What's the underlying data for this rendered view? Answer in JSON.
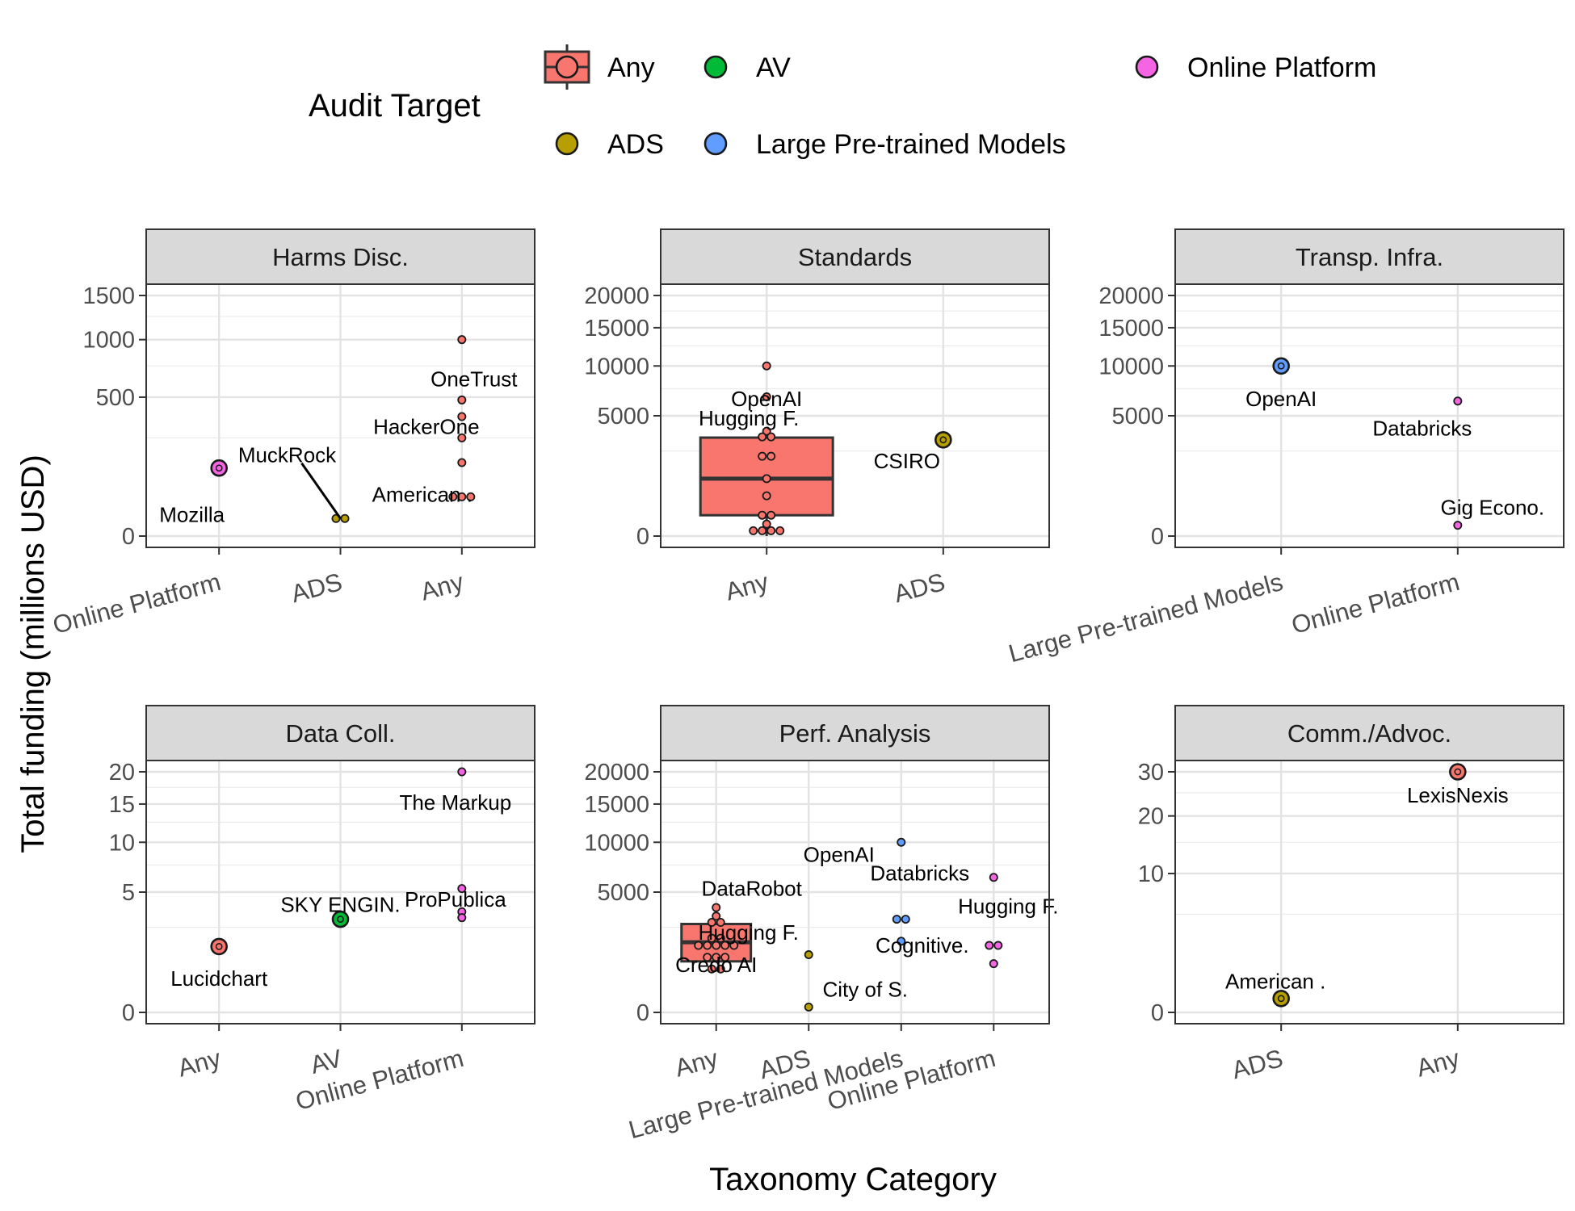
{
  "chart_data": {
    "type": "boxplot-with-jittered-points, faceted",
    "xlabel": "Taxonomy Category",
    "ylabel": "Total funding (millions USD)",
    "legend": {
      "title": "Audit Target",
      "placement": "top",
      "entries": [
        {
          "label": "Any",
          "color": "#F8766D"
        },
        {
          "label": "AV",
          "color": "#00BA38"
        },
        {
          "label": "Online Platform",
          "color": "#F564E3"
        },
        {
          "label": "ADS",
          "color": "#B79F00"
        },
        {
          "label": "Large Pre-trained Models",
          "color": "#619CFF"
        }
      ]
    },
    "colors": {
      "Any": "#F8766D",
      "AV": "#00BA38",
      "Online Platform": "#F564E3",
      "ADS": "#B79F00",
      "Large Pre-trained Models": "#619CFF"
    },
    "y_scale": "sqrt",
    "grid": true,
    "facets": [
      {
        "title": "Harms Disc.",
        "categories": [
          "Online Platform",
          "ADS",
          "Any"
        ],
        "ylim": [
          0,
          1500
        ],
        "yticks": [
          0,
          500,
          1000,
          1500
        ],
        "points": [
          {
            "cat": "Online Platform",
            "y": 120,
            "target": "Online Platform",
            "single": true
          },
          {
            "cat": "ADS",
            "y": 8,
            "target": "ADS"
          },
          {
            "cat": "ADS",
            "y": 8,
            "target": "ADS"
          },
          {
            "cat": "Any",
            "y": 1000,
            "target": "Any"
          },
          {
            "cat": "Any",
            "y": 480,
            "target": "Any"
          },
          {
            "cat": "Any",
            "y": 370,
            "target": "Any"
          },
          {
            "cat": "Any",
            "y": 250,
            "target": "Any"
          },
          {
            "cat": "Any",
            "y": 140,
            "target": "Any"
          },
          {
            "cat": "Any",
            "y": 40,
            "target": "Any"
          },
          {
            "cat": "Any",
            "y": 40,
            "target": "Any"
          },
          {
            "cat": "Any",
            "y": 40,
            "target": "Any"
          }
        ],
        "labels": [
          {
            "text": "Mozilla",
            "cat": "Online Platform",
            "y": 12
          },
          {
            "text": "MuckRock",
            "cat": "ADS",
            "y": 170
          },
          {
            "text": "OneTrust",
            "cat": "Any",
            "y": 640
          },
          {
            "text": "HackerOne",
            "cat": "Any",
            "y": 310
          },
          {
            "text": "American .",
            "cat": "Any",
            "y": 45
          }
        ]
      },
      {
        "title": "Standards",
        "categories": [
          "Any",
          "ADS"
        ],
        "ylim": [
          0,
          20000
        ],
        "yticks": [
          0,
          5000,
          10000,
          15000,
          20000
        ],
        "box": {
          "cat": "Any",
          "q1": 150,
          "median": 1140,
          "q3": 3350,
          "whisker_low": 0,
          "whisker_high": 3350
        },
        "points": [
          {
            "cat": "Any",
            "y": 10000,
            "target": "Any"
          },
          {
            "cat": "Any",
            "y": 6700,
            "target": "Any"
          },
          {
            "cat": "Any",
            "y": 3800,
            "target": "Any"
          },
          {
            "cat": "Any",
            "y": 3400,
            "target": "Any"
          },
          {
            "cat": "Any",
            "y": 3400,
            "target": "Any"
          },
          {
            "cat": "Any",
            "y": 2200,
            "target": "Any"
          },
          {
            "cat": "Any",
            "y": 2200,
            "target": "Any"
          },
          {
            "cat": "Any",
            "y": 1140,
            "target": "Any"
          },
          {
            "cat": "Any",
            "y": 560,
            "target": "Any"
          },
          {
            "cat": "Any",
            "y": 150,
            "target": "Any"
          },
          {
            "cat": "Any",
            "y": 150,
            "target": "Any"
          },
          {
            "cat": "Any",
            "y": 50,
            "target": "Any"
          },
          {
            "cat": "Any",
            "y": 10,
            "target": "Any"
          },
          {
            "cat": "Any",
            "y": 10,
            "target": "Any"
          },
          {
            "cat": "Any",
            "y": 10,
            "target": "Any"
          },
          {
            "cat": "Any",
            "y": 10,
            "target": "Any"
          },
          {
            "cat": "ADS",
            "y": 3200,
            "target": "ADS",
            "single": true
          }
        ],
        "labels": [
          {
            "text": "OpenAI",
            "cat": "Any",
            "y": 6500
          },
          {
            "text": "Hugging F.",
            "cat": "Any",
            "y": 4800
          },
          {
            "text": "CSIRO",
            "cat": "ADS",
            "y": 1950
          }
        ]
      },
      {
        "title": "Transp. Infra.",
        "categories": [
          "Large Pre-trained Models",
          "Online Platform"
        ],
        "ylim": [
          0,
          20000
        ],
        "yticks": [
          0,
          5000,
          10000,
          15000,
          20000
        ],
        "points": [
          {
            "cat": "Large Pre-trained Models",
            "y": 10000,
            "target": "Large Pre-trained Models",
            "single": true
          },
          {
            "cat": "Online Platform",
            "y": 6300,
            "target": "Online Platform"
          },
          {
            "cat": "Online Platform",
            "y": 40,
            "target": "Online Platform"
          }
        ],
        "labels": [
          {
            "text": "OpenAI",
            "cat": "Large Pre-trained Models",
            "y": 6500
          },
          {
            "text": "Databricks",
            "cat": "Online Platform",
            "y": 4000
          },
          {
            "text": "Gig Econo.",
            "cat": "Online Platform",
            "y": 280
          }
        ]
      },
      {
        "title": "Data Coll.",
        "categories": [
          "Any",
          "AV",
          "Online Platform"
        ],
        "ylim": [
          0,
          20
        ],
        "yticks": [
          0,
          5,
          10,
          15,
          20
        ],
        "points": [
          {
            "cat": "Any",
            "y": 1.5,
            "target": "Any",
            "single": true
          },
          {
            "cat": "AV",
            "y": 3.0,
            "target": "AV",
            "single": true
          },
          {
            "cat": "Online Platform",
            "y": 20,
            "target": "Online Platform"
          },
          {
            "cat": "Online Platform",
            "y": 5.3,
            "target": "Online Platform"
          },
          {
            "cat": "Online Platform",
            "y": 3.5,
            "target": "Online Platform"
          },
          {
            "cat": "Online Platform",
            "y": 3.1,
            "target": "Online Platform"
          }
        ],
        "labels": [
          {
            "text": "Lucidchart",
            "cat": "Any",
            "y": 0.4
          },
          {
            "text": "SKY ENGIN.",
            "cat": "AV",
            "y": 4.0
          },
          {
            "text": "The Markup",
            "cat": "Online Platform",
            "y": 15.2
          },
          {
            "text": "ProPublica",
            "cat": "Online Platform",
            "y": 4.4
          }
        ]
      },
      {
        "title": "Perf. Analysis",
        "categories": [
          "Any",
          "ADS",
          "Large Pre-trained Models",
          "Online Platform"
        ],
        "ylim": [
          0,
          20000
        ],
        "yticks": [
          0,
          5000,
          10000,
          15000,
          20000
        ],
        "box": {
          "cat": "Any",
          "q1": 900,
          "median": 1700,
          "q3": 2700,
          "whisker_low": 900,
          "whisker_high": 2700
        },
        "points": [
          {
            "cat": "Any",
            "y": 3800,
            "target": "Any"
          },
          {
            "cat": "Any",
            "y": 3200,
            "target": "Any"
          },
          {
            "cat": "Any",
            "y": 2800,
            "target": "Any"
          },
          {
            "cat": "Any",
            "y": 2800,
            "target": "Any"
          },
          {
            "cat": "Any",
            "y": 1900,
            "target": "Any"
          },
          {
            "cat": "Any",
            "y": 1900,
            "target": "Any"
          },
          {
            "cat": "Any",
            "y": 1550,
            "target": "Any"
          },
          {
            "cat": "Any",
            "y": 1550,
            "target": "Any"
          },
          {
            "cat": "Any",
            "y": 1550,
            "target": "Any"
          },
          {
            "cat": "Any",
            "y": 1550,
            "target": "Any"
          },
          {
            "cat": "Any",
            "y": 1550,
            "target": "Any"
          },
          {
            "cat": "Any",
            "y": 1050,
            "target": "Any"
          },
          {
            "cat": "Any",
            "y": 1050,
            "target": "Any"
          },
          {
            "cat": "Any",
            "y": 1050,
            "target": "Any"
          },
          {
            "cat": "Any",
            "y": 650,
            "target": "Any"
          },
          {
            "cat": "Any",
            "y": 650,
            "target": "Any"
          },
          {
            "cat": "ADS",
            "y": 1150,
            "target": "ADS"
          },
          {
            "cat": "ADS",
            "y": 10,
            "target": "ADS"
          },
          {
            "cat": "Large Pre-trained Models",
            "y": 10000,
            "target": "Large Pre-trained Models"
          },
          {
            "cat": "Large Pre-trained Models",
            "y": 3000,
            "target": "Large Pre-trained Models"
          },
          {
            "cat": "Large Pre-trained Models",
            "y": 3000,
            "target": "Large Pre-trained Models"
          },
          {
            "cat": "Large Pre-trained Models",
            "y": 1750,
            "target": "Large Pre-trained Models"
          },
          {
            "cat": "Online Platform",
            "y": 6300,
            "target": "Online Platform"
          },
          {
            "cat": "Online Platform",
            "y": 1550,
            "target": "Online Platform"
          },
          {
            "cat": "Online Platform",
            "y": 1550,
            "target": "Online Platform"
          },
          {
            "cat": "Online Platform",
            "y": 820,
            "target": "Online Platform"
          }
        ],
        "labels": [
          {
            "text": "DataRobot",
            "cat": "Any",
            "y": 5300
          },
          {
            "text": "Hugging F.",
            "cat": "Any",
            "y": 2200
          },
          {
            "text": "Credo AI",
            "cat": "Any",
            "y": 780
          },
          {
            "text": "City of S.",
            "cat": "ADS",
            "y": 180
          },
          {
            "text": "OpenAI",
            "cat": "Large Pre-trained Models",
            "y": 8600
          },
          {
            "text": "Databricks",
            "cat": "Large Pre-trained Models",
            "y": 6700
          },
          {
            "text": "Hugging F.",
            "cat": "Online Platform",
            "y": 3900
          },
          {
            "text": "Cognitive.",
            "cat": "Large Pre-trained Models",
            "y": 1560
          }
        ]
      },
      {
        "title": "Comm./Advoc.",
        "categories": [
          "ADS",
          "Any"
        ],
        "ylim": [
          0,
          30
        ],
        "yticks": [
          0,
          10,
          20,
          30
        ],
        "points": [
          {
            "cat": "ADS",
            "y": 0.1,
            "target": "ADS",
            "single": true
          },
          {
            "cat": "Any",
            "y": 30,
            "target": "Any",
            "single": true
          }
        ],
        "labels": [
          {
            "text": "American .",
            "cat": "ADS",
            "y": 0.5
          },
          {
            "text": "LexisNexis",
            "cat": "Any",
            "y": 24.4
          }
        ]
      }
    ]
  }
}
